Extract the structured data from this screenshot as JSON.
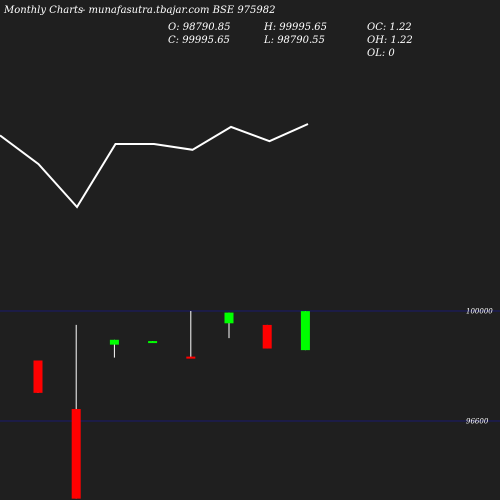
{
  "header": {
    "title": "Monthly Charts",
    "source": "- munafasutra.tbajar.com BSE 975982",
    "open": "O: 98790.85",
    "high": "H: 99995.65",
    "oc": "OC: 1.22",
    "close": "C: 99995.65",
    "low": "L: 98790.55",
    "oh": "OH: 1.22",
    "ol": "OL: 0"
  },
  "colors": {
    "background": "#1f1f1f",
    "bull": "#00ff00",
    "bear": "#ff0000",
    "neutral": "#ff8888",
    "wick": "#ffffff",
    "gridline": "#1a1a6e",
    "line": "#ffffff"
  },
  "chart_data": [
    {
      "type": "line",
      "values": [
        100,
        90,
        75,
        97,
        97,
        95,
        103,
        98,
        104
      ]
    },
    {
      "type": "candlestick",
      "y_ticks": [
        {
          "value": 100000,
          "label": "100000"
        },
        {
          "value": 96600,
          "label": "96600"
        }
      ],
      "candles": [
        {
          "open": 98470,
          "high": 98470,
          "low": 97470,
          "close": 97470
        },
        {
          "open": 96970,
          "high": 99570,
          "low": 94200,
          "close": 94200
        },
        {
          "open": 98960,
          "high": 99110,
          "low": 98560,
          "close": 99110
        },
        {
          "open": 99020,
          "high": 99070,
          "low": 99020,
          "close": 99070
        },
        {
          "open": 98590,
          "high": 100000,
          "low": 98560,
          "close": 98560
        },
        {
          "open": 99620,
          "high": 99950,
          "low": 99160,
          "close": 99950
        },
        {
          "open": 99570,
          "high": 99570,
          "low": 98840,
          "close": 98840
        },
        {
          "open": 98790.85,
          "high": 99995.65,
          "low": 98790.55,
          "close": 99995.65
        }
      ]
    }
  ]
}
